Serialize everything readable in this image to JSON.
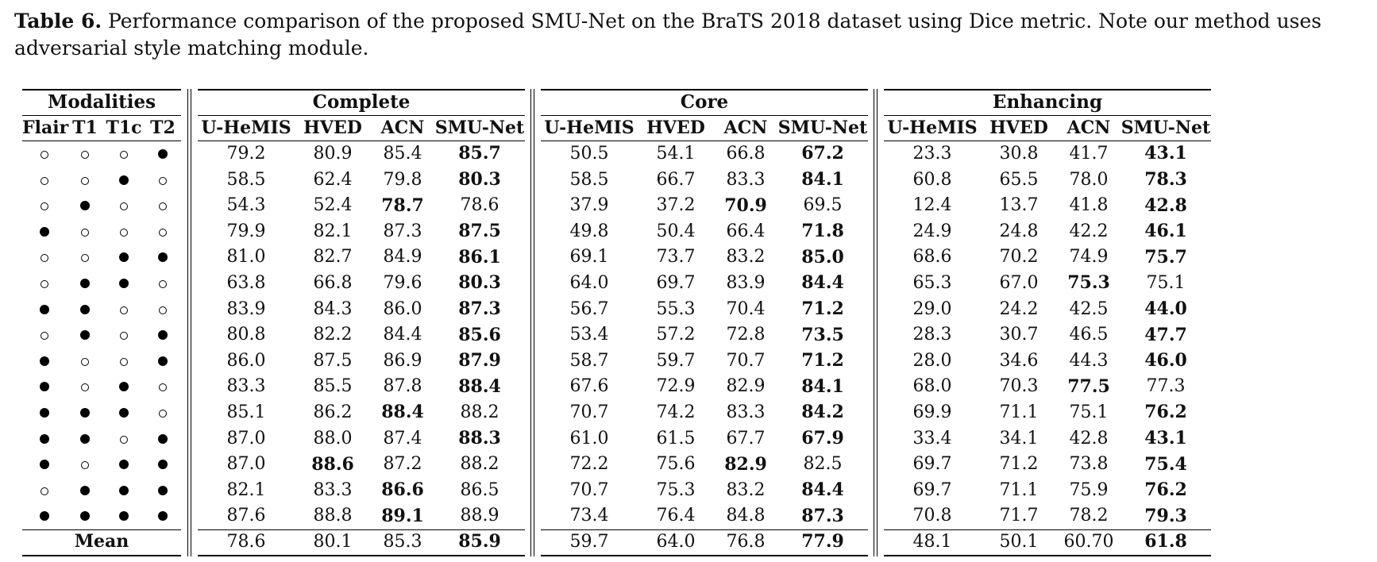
{
  "caption": {
    "label": "Table 6.",
    "text": " Performance comparison of the proposed SMU-Net on the BraTS 2018 dataset using Dice metric. Note our method uses adversarial style matching module."
  },
  "headers": {
    "modalities": "Modalities",
    "groups": [
      "Complete",
      "Core",
      "Enhancing"
    ],
    "modality_cols": [
      "Flair",
      "T1",
      "T1c",
      "T2"
    ],
    "method_cols": [
      "U-HeMIS",
      "HVED",
      "ACN",
      "SMU-Net"
    ]
  },
  "rows": [
    {
      "mods": [
        0,
        0,
        0,
        1
      ],
      "vals": [
        "79.2",
        "80.9",
        "85.4",
        "85.7",
        "50.5",
        "54.1",
        "66.8",
        "67.2",
        "23.3",
        "30.8",
        "41.7",
        "43.1"
      ],
      "bold": [
        3,
        7,
        11
      ]
    },
    {
      "mods": [
        0,
        0,
        1,
        0
      ],
      "vals": [
        "58.5",
        "62.4",
        "79.8",
        "80.3",
        "58.5",
        "66.7",
        "83.3",
        "84.1",
        "60.8",
        "65.5",
        "78.0",
        "78.3"
      ],
      "bold": [
        3,
        7,
        11
      ]
    },
    {
      "mods": [
        0,
        1,
        0,
        0
      ],
      "vals": [
        "54.3",
        "52.4",
        "78.7",
        "78.6",
        "37.9",
        "37.2",
        "70.9",
        "69.5",
        "12.4",
        "13.7",
        "41.8",
        "42.8"
      ],
      "bold": [
        2,
        6,
        11
      ]
    },
    {
      "mods": [
        1,
        0,
        0,
        0
      ],
      "vals": [
        "79.9",
        "82.1",
        "87.3",
        "87.5",
        "49.8",
        "50.4",
        "66.4",
        "71.8",
        "24.9",
        "24.8",
        "42.2",
        "46.1"
      ],
      "bold": [
        3,
        7,
        11
      ]
    },
    {
      "mods": [
        0,
        0,
        1,
        1
      ],
      "vals": [
        "81.0",
        "82.7",
        "84.9",
        "86.1",
        "69.1",
        "73.7",
        "83.2",
        "85.0",
        "68.6",
        "70.2",
        "74.9",
        "75.7"
      ],
      "bold": [
        3,
        7,
        11
      ]
    },
    {
      "mods": [
        0,
        1,
        1,
        0
      ],
      "vals": [
        "63.8",
        "66.8",
        "79.6",
        "80.3",
        "64.0",
        "69.7",
        "83.9",
        "84.4",
        "65.3",
        "67.0",
        "75.3",
        "75.1"
      ],
      "bold": [
        3,
        7,
        10
      ]
    },
    {
      "mods": [
        1,
        1,
        0,
        0
      ],
      "vals": [
        "83.9",
        "84.3",
        "86.0",
        "87.3",
        "56.7",
        "55.3",
        "70.4",
        "71.2",
        "29.0",
        "24.2",
        "42.5",
        "44.0"
      ],
      "bold": [
        3,
        7,
        11
      ]
    },
    {
      "mods": [
        0,
        1,
        0,
        1
      ],
      "vals": [
        "80.8",
        "82.2",
        "84.4",
        "85.6",
        "53.4",
        "57.2",
        "72.8",
        "73.5",
        "28.3",
        "30.7",
        "46.5",
        "47.7"
      ],
      "bold": [
        3,
        7,
        11
      ]
    },
    {
      "mods": [
        1,
        0,
        0,
        1
      ],
      "vals": [
        "86.0",
        "87.5",
        "86.9",
        "87.9",
        "58.7",
        "59.7",
        "70.7",
        "71.2",
        "28.0",
        "34.6",
        "44.3",
        "46.0"
      ],
      "bold": [
        3,
        7,
        11
      ]
    },
    {
      "mods": [
        1,
        0,
        1,
        0
      ],
      "vals": [
        "83.3",
        "85.5",
        "87.8",
        "88.4",
        "67.6",
        "72.9",
        "82.9",
        "84.1",
        "68.0",
        "70.3",
        "77.5",
        "77.3"
      ],
      "bold": [
        3,
        7,
        10
      ]
    },
    {
      "mods": [
        1,
        1,
        1,
        0
      ],
      "vals": [
        "85.1",
        "86.2",
        "88.4",
        "88.2",
        "70.7",
        "74.2",
        "83.3",
        "84.2",
        "69.9",
        "71.1",
        "75.1",
        "76.2"
      ],
      "bold": [
        2,
        7,
        11
      ]
    },
    {
      "mods": [
        1,
        1,
        0,
        1
      ],
      "vals": [
        "87.0",
        "88.0",
        "87.4",
        "88.3",
        "61.0",
        "61.5",
        "67.7",
        "67.9",
        "33.4",
        "34.1",
        "42.8",
        "43.1"
      ],
      "bold": [
        3,
        7,
        11
      ]
    },
    {
      "mods": [
        1,
        0,
        1,
        1
      ],
      "vals": [
        "87.0",
        "88.6",
        "87.2",
        "88.2",
        "72.2",
        "75.6",
        "82.9",
        "82.5",
        "69.7",
        "71.2",
        "73.8",
        "75.4"
      ],
      "bold": [
        1,
        6,
        11
      ]
    },
    {
      "mods": [
        0,
        1,
        1,
        1
      ],
      "vals": [
        "82.1",
        "83.3",
        "86.6",
        "86.5",
        "70.7",
        "75.3",
        "83.2",
        "84.4",
        "69.7",
        "71.1",
        "75.9",
        "76.2"
      ],
      "bold": [
        2,
        7,
        11
      ]
    },
    {
      "mods": [
        1,
        1,
        1,
        1
      ],
      "vals": [
        "87.6",
        "88.8",
        "89.1",
        "88.9",
        "73.4",
        "76.4",
        "84.8",
        "87.3",
        "70.8",
        "71.7",
        "78.2",
        "79.3"
      ],
      "bold": [
        2,
        7,
        11
      ]
    }
  ],
  "mean": {
    "label": "Mean",
    "vals": [
      "78.6",
      "80.1",
      "85.3",
      "85.9",
      "59.7",
      "64.0",
      "76.8",
      "77.9",
      "48.1",
      "50.1",
      "60.70",
      "61.8"
    ],
    "bold": [
      3,
      7,
      11
    ]
  }
}
